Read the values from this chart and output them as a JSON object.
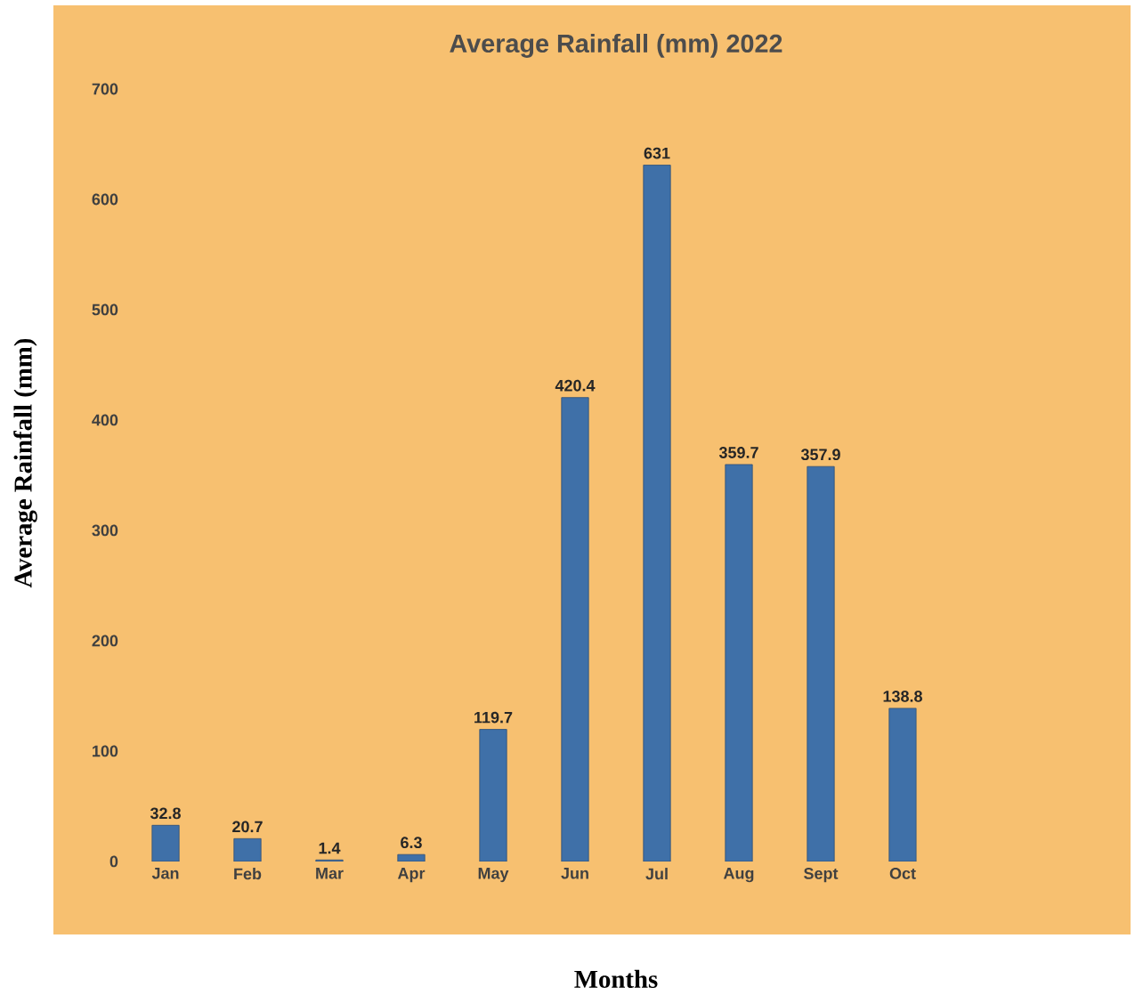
{
  "chart_data": {
    "type": "bar",
    "title": "Average Rainfall (mm) 2022",
    "xlabel": "Months",
    "ylabel": "Average Rainfall  (mm)",
    "categories": [
      "Jan",
      "Feb",
      "Mar",
      "Apr",
      "May",
      "Jun",
      "Jul",
      "Aug",
      "Sept",
      "Oct"
    ],
    "values": [
      32.8,
      20.7,
      1.4,
      6.3,
      119.7,
      420.4,
      631,
      359.7,
      357.9,
      138.8
    ],
    "color": "#3f70a8",
    "ylim": [
      0,
      700
    ],
    "yticks": [
      0,
      100,
      200,
      300,
      400,
      500,
      600,
      700
    ],
    "data_labels": true
  }
}
